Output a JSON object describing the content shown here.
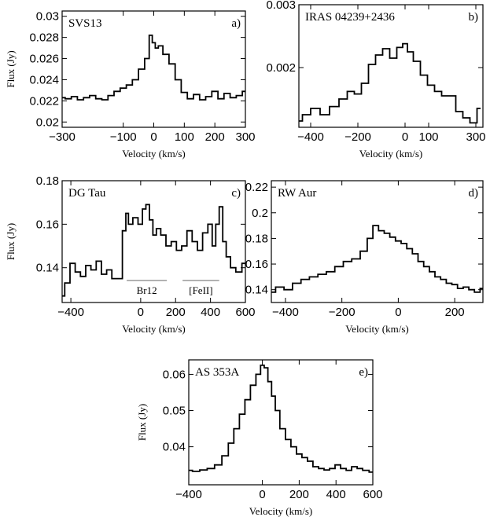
{
  "chart_data": [
    {
      "type": "line",
      "panel_label": "a)",
      "object_name": "SVS13",
      "xlabel": "Velocity (km/s)",
      "ylabel": "Flux (Jy)",
      "xlim": [
        -300,
        300
      ],
      "ylim": [
        0.0195,
        0.0305
      ],
      "xticks": [
        -300,
        -100,
        0,
        100,
        200,
        300
      ],
      "xtick_labels": [
        "−300",
        "−100",
        "0",
        "100",
        "200",
        "300"
      ],
      "yticks": [
        0.02,
        0.022,
        0.024,
        0.026,
        0.028,
        0.03
      ],
      "ytick_labels": [
        "0.02",
        "0.022",
        "0.024",
        "0.026",
        "0.028",
        "0.03"
      ],
      "series": [
        {
          "x": [
            -300,
            -280,
            -260,
            -240,
            -220,
            -200,
            -180,
            -160,
            -140,
            -120,
            -100,
            -80,
            -60,
            -40,
            -20,
            -10,
            0,
            10,
            20,
            40,
            60,
            80,
            100,
            120,
            140,
            160,
            180,
            200,
            220,
            240,
            260,
            280,
            300
          ],
          "y": [
            0.0223,
            0.0222,
            0.0224,
            0.0221,
            0.0223,
            0.0225,
            0.0222,
            0.0221,
            0.0225,
            0.0229,
            0.0232,
            0.0235,
            0.024,
            0.025,
            0.026,
            0.0282,
            0.0275,
            0.027,
            0.0272,
            0.0264,
            0.0255,
            0.024,
            0.0228,
            0.0222,
            0.0226,
            0.0221,
            0.0224,
            0.0229,
            0.0222,
            0.0227,
            0.0223,
            0.0225,
            0.0229
          ]
        }
      ]
    },
    {
      "type": "line",
      "panel_label": "b)",
      "object_name": "IRAS 04239+2436",
      "xlabel": "Velocity (km/s)",
      "ylabel": "",
      "xlim": [
        -450,
        330
      ],
      "ylim": [
        0.00105,
        0.003
      ],
      "xticks": [
        -400,
        -200,
        0,
        100,
        300
      ],
      "xtick_labels": [
        "−400",
        "−200",
        "0",
        "100",
        "300"
      ],
      "yticks": [
        0.002,
        0.003
      ],
      "ytick_labels": [
        "0.002",
        "0.003"
      ],
      "series": [
        {
          "x": [
            -450,
            -420,
            -380,
            -340,
            -300,
            -260,
            -230,
            -200,
            -170,
            -140,
            -110,
            -80,
            -50,
            -20,
            0,
            20,
            50,
            80,
            110,
            140,
            170,
            200,
            230,
            260,
            290,
            320
          ],
          "y": [
            0.00115,
            0.00125,
            0.00135,
            0.00125,
            0.00138,
            0.0015,
            0.00162,
            0.00158,
            0.00175,
            0.00205,
            0.0022,
            0.0023,
            0.00215,
            0.00232,
            0.00238,
            0.00225,
            0.0021,
            0.00188,
            0.00172,
            0.00162,
            0.00155,
            0.00155,
            0.0013,
            0.0012,
            0.00112,
            0.00135
          ]
        }
      ]
    },
    {
      "type": "line",
      "panel_label": "c)",
      "object_name": "DG Tau",
      "xlabel": "Velocity (km/s)",
      "ylabel": "Flux (Jy)",
      "xlim": [
        -450,
        600
      ],
      "ylim": [
        0.124,
        0.18
      ],
      "xticks": [
        -400,
        0,
        200,
        400,
        600
      ],
      "xtick_labels": [
        "−400",
        "0",
        "200",
        "400",
        "600"
      ],
      "yticks": [
        0.14,
        0.16,
        0.18
      ],
      "ytick_labels": [
        "0.14",
        "0.16",
        "0.18"
      ],
      "annotations": [
        {
          "text": "Br12",
          "x_range": [
            -80,
            150
          ]
        },
        {
          "text": "[FeII]",
          "x_range": [
            240,
            450
          ]
        }
      ],
      "series": [
        {
          "x": [
            -450,
            -420,
            -390,
            -360,
            -330,
            -300,
            -270,
            -240,
            -210,
            -180,
            -150,
            -120,
            -90,
            -80,
            -60,
            -30,
            0,
            20,
            40,
            60,
            80,
            100,
            130,
            160,
            190,
            220,
            250,
            280,
            310,
            340,
            370,
            400,
            420,
            440,
            460,
            480,
            500,
            530,
            560,
            600
          ],
          "y": [
            0.127,
            0.133,
            0.142,
            0.138,
            0.136,
            0.141,
            0.139,
            0.143,
            0.137,
            0.139,
            0.135,
            0.135,
            0.157,
            0.165,
            0.16,
            0.163,
            0.16,
            0.167,
            0.169,
            0.162,
            0.155,
            0.158,
            0.155,
            0.15,
            0.152,
            0.148,
            0.15,
            0.157,
            0.152,
            0.148,
            0.156,
            0.16,
            0.15,
            0.16,
            0.168,
            0.152,
            0.145,
            0.14,
            0.138,
            0.142
          ]
        }
      ]
    },
    {
      "type": "line",
      "panel_label": "d)",
      "object_name": "RW Aur",
      "xlabel": "Velocity (km/s)",
      "ylabel": "",
      "xlim": [
        -450,
        300
      ],
      "ylim": [
        0.13,
        0.225
      ],
      "xticks": [
        -400,
        -200,
        0,
        200
      ],
      "xtick_labels": [
        "−400",
        "−200",
        "0",
        "200"
      ],
      "yticks": [
        0.14,
        0.16,
        0.18,
        0.2,
        0.22
      ],
      "ytick_labels": [
        "0.14",
        "0.16",
        "0.18",
        "0.2",
        "0.22"
      ],
      "series": [
        {
          "x": [
            -450,
            -420,
            -390,
            -360,
            -330,
            -300,
            -270,
            -240,
            -210,
            -180,
            -150,
            -120,
            -100,
            -80,
            -60,
            -40,
            -20,
            0,
            20,
            40,
            60,
            80,
            100,
            120,
            140,
            160,
            180,
            200,
            220,
            240,
            260,
            280,
            300
          ],
          "y": [
            0.138,
            0.142,
            0.14,
            0.145,
            0.148,
            0.15,
            0.152,
            0.154,
            0.158,
            0.162,
            0.164,
            0.17,
            0.18,
            0.19,
            0.186,
            0.184,
            0.181,
            0.178,
            0.176,
            0.172,
            0.168,
            0.162,
            0.158,
            0.154,
            0.15,
            0.148,
            0.145,
            0.144,
            0.141,
            0.142,
            0.14,
            0.138,
            0.141
          ]
        }
      ]
    },
    {
      "type": "line",
      "panel_label": "e)",
      "object_name": "AS 353A",
      "xlabel": "Velocity (km/s)",
      "ylabel": "Flux (Jy)",
      "xlim": [
        -400,
        600
      ],
      "ylim": [
        0.0295,
        0.064
      ],
      "xticks": [
        -400,
        0,
        200,
        400,
        600
      ],
      "xtick_labels": [
        "−400",
        "0",
        "200",
        "400",
        "600"
      ],
      "yticks": [
        0.04,
        0.05,
        0.06
      ],
      "ytick_labels": [
        "0.04",
        "0.05",
        "0.06"
      ],
      "series": [
        {
          "x": [
            -400,
            -360,
            -320,
            -280,
            -240,
            -200,
            -170,
            -140,
            -110,
            -80,
            -50,
            -20,
            0,
            20,
            40,
            60,
            80,
            110,
            140,
            170,
            200,
            230,
            260,
            290,
            320,
            350,
            380,
            410,
            440,
            470,
            500,
            530,
            560,
            600
          ],
          "y": [
            0.0335,
            0.0332,
            0.0336,
            0.034,
            0.035,
            0.0375,
            0.041,
            0.045,
            0.049,
            0.053,
            0.057,
            0.06,
            0.0625,
            0.0618,
            0.058,
            0.054,
            0.05,
            0.045,
            0.042,
            0.04,
            0.038,
            0.037,
            0.036,
            0.0345,
            0.034,
            0.0336,
            0.034,
            0.035,
            0.034,
            0.0335,
            0.0345,
            0.034,
            0.0335,
            0.033
          ]
        }
      ]
    }
  ]
}
